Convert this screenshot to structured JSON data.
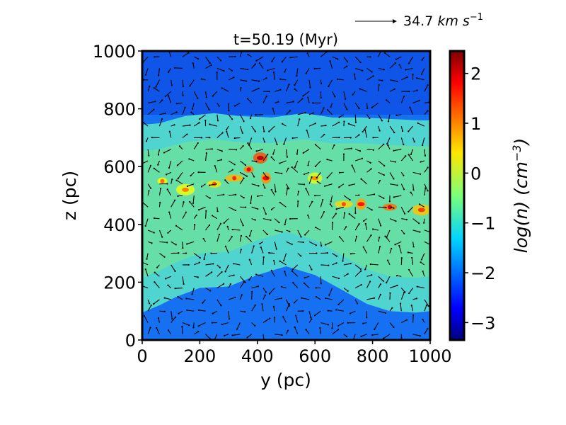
{
  "chart_data": {
    "type": "heatmap",
    "title": "t=50.19 (Myr)",
    "xlabel": "y (pc)",
    "ylabel": "z (pc)",
    "xlim": [
      0,
      1000
    ],
    "ylim": [
      0,
      1000
    ],
    "x_ticks": [
      "0",
      "200",
      "400",
      "600",
      "800",
      "1000"
    ],
    "y_ticks": [
      "0",
      "200",
      "400",
      "600",
      "800",
      "1000"
    ],
    "colorbar": {
      "label": "log(n) (cm",
      "label_exponent": "−3",
      "label_close": ")",
      "range": [
        -3.35,
        2.45
      ],
      "ticks": [
        "−3",
        "−2",
        "−1",
        "0",
        "1",
        "2"
      ],
      "tick_values": [
        -3,
        -2,
        -1,
        0,
        1,
        2
      ],
      "colormap": "jet"
    },
    "reference_vector": {
      "label": "34.7",
      "unit_km": "km",
      "unit_s": "s",
      "unit_exponent": "−1"
    },
    "disk_boundary": {
      "upper_z": [
        [
          0,
          745
        ],
        [
          60,
          750
        ],
        [
          150,
          775
        ],
        [
          250,
          785
        ],
        [
          330,
          775
        ],
        [
          450,
          770
        ],
        [
          560,
          785
        ],
        [
          660,
          770
        ],
        [
          760,
          770
        ],
        [
          860,
          765
        ],
        [
          960,
          760
        ],
        [
          1000,
          760
        ]
      ],
      "lower_z": [
        [
          0,
          95
        ],
        [
          60,
          120
        ],
        [
          120,
          150
        ],
        [
          200,
          180
        ],
        [
          300,
          185
        ],
        [
          400,
          225
        ],
        [
          500,
          255
        ],
        [
          600,
          225
        ],
        [
          700,
          170
        ],
        [
          780,
          125
        ],
        [
          860,
          100
        ],
        [
          950,
          95
        ],
        [
          1000,
          100
        ]
      ]
    },
    "dense_clumps": [
      {
        "y": 370,
        "z": 590,
        "logn": 1.8
      },
      {
        "y": 410,
        "z": 630,
        "logn": 2.1
      },
      {
        "y": 320,
        "z": 560,
        "logn": 1.5
      },
      {
        "y": 430,
        "z": 560,
        "logn": 1.7
      },
      {
        "y": 250,
        "z": 540,
        "logn": 1.2
      },
      {
        "y": 150,
        "z": 520,
        "logn": 1.0
      },
      {
        "y": 70,
        "z": 550,
        "logn": 1.1
      },
      {
        "y": 600,
        "z": 560,
        "logn": 0.9
      },
      {
        "y": 700,
        "z": 470,
        "logn": 1.3
      },
      {
        "y": 760,
        "z": 470,
        "logn": 1.6
      },
      {
        "y": 860,
        "z": 460,
        "logn": 1.9
      },
      {
        "y": 970,
        "z": 450,
        "logn": 1.4
      }
    ]
  }
}
